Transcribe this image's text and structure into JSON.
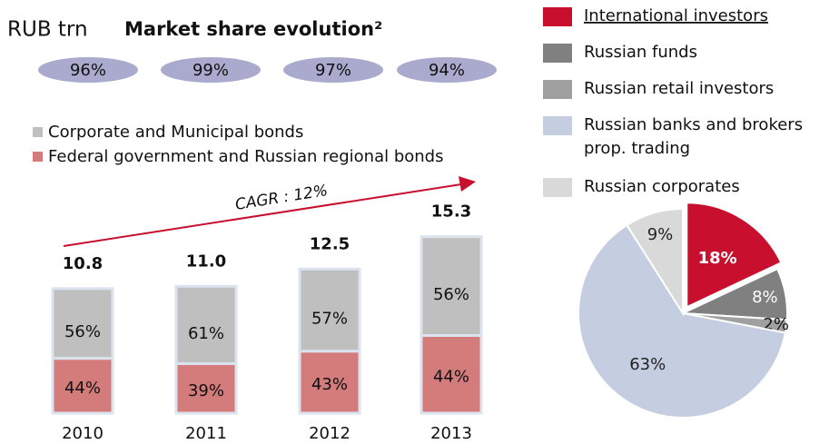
{
  "chart_data": [
    {
      "type": "stacked-bar",
      "unit": "RUB trn",
      "title": "Market share evolution²",
      "annotation": "CAGR : 12%",
      "categories": [
        "2010",
        "2011",
        "2012",
        "2013"
      ],
      "market_share": {
        "values": [
          96,
          99,
          97,
          94
        ],
        "value_labels": [
          "96%",
          "99%",
          "97%",
          "94%"
        ],
        "color": "#a9aacd"
      },
      "totals": {
        "values": [
          10.8,
          11,
          12.5,
          15.3
        ],
        "value_labels": [
          "10.8",
          "11.0",
          "12.5",
          "15.3"
        ]
      },
      "series": [
        {
          "name": "Federal government and Russian regional bonds",
          "color": "#d47b7b",
          "values": [
            44,
            39,
            43,
            44
          ],
          "value_labels": [
            "44%",
            "39%",
            "43%",
            "44%"
          ]
        },
        {
          "name": "Corporate and Municipal bonds",
          "color": "#bfbfbf",
          "values": [
            56,
            61,
            57,
            56
          ],
          "value_labels": [
            "56%",
            "61%",
            "57%",
            "56%"
          ]
        }
      ]
    },
    {
      "type": "pie",
      "categories": [
        "International investors",
        "Russian funds",
        "Russian retail investors",
        "Russian banks and brokers prop. trading",
        "Russian corporates"
      ],
      "values": [
        18,
        8,
        2,
        63,
        9
      ],
      "value_labels": [
        "18%",
        "8%",
        "2%",
        "63%",
        "9%"
      ],
      "colors": [
        "#c8102e",
        "#808080",
        "#a0a0a0",
        "#c5cee0",
        "#d9d9d9"
      ]
    }
  ]
}
